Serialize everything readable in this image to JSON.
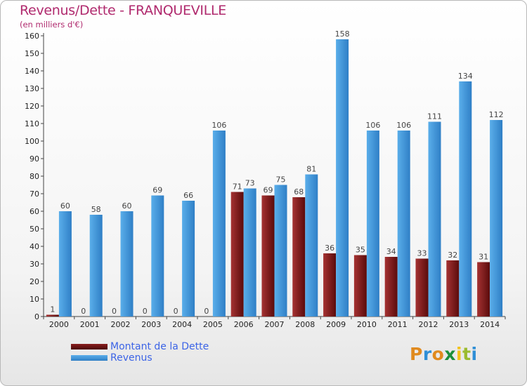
{
  "chart_data": {
    "type": "bar",
    "title": "Revenus/Dette - FRANQUEVILLE",
    "subtitle": "(en milliers d'€)",
    "categories": [
      "2000",
      "2001",
      "2002",
      "2003",
      "2004",
      "2005",
      "2006",
      "2007",
      "2008",
      "2009",
      "2010",
      "2011",
      "2012",
      "2013",
      "2014"
    ],
    "series": [
      {
        "name": "Montant de la Dette",
        "color": "#7a1616",
        "values": [
          1,
          0,
          0,
          0,
          0,
          0,
          71,
          69,
          68,
          36,
          35,
          34,
          33,
          32,
          31
        ]
      },
      {
        "name": "Revenus",
        "color": "#3f94dc",
        "values": [
          60,
          58,
          60,
          69,
          66,
          106,
          73,
          75,
          81,
          158,
          106,
          106,
          111,
          134,
          112
        ]
      }
    ],
    "ylim": [
      0,
      160
    ],
    "ytick_step": 10,
    "grid": false,
    "legend_position": "bottom-left",
    "data_labels": true
  },
  "brand": {
    "letters": [
      "P",
      "r",
      "o",
      "x",
      "i",
      "t",
      "i"
    ],
    "colors": [
      "#e08a1e",
      "#2f8fd6",
      "#e08a1e",
      "#1b8f3a",
      "#f2c21a",
      "#9bbb2e",
      "#2f8fd6"
    ]
  }
}
